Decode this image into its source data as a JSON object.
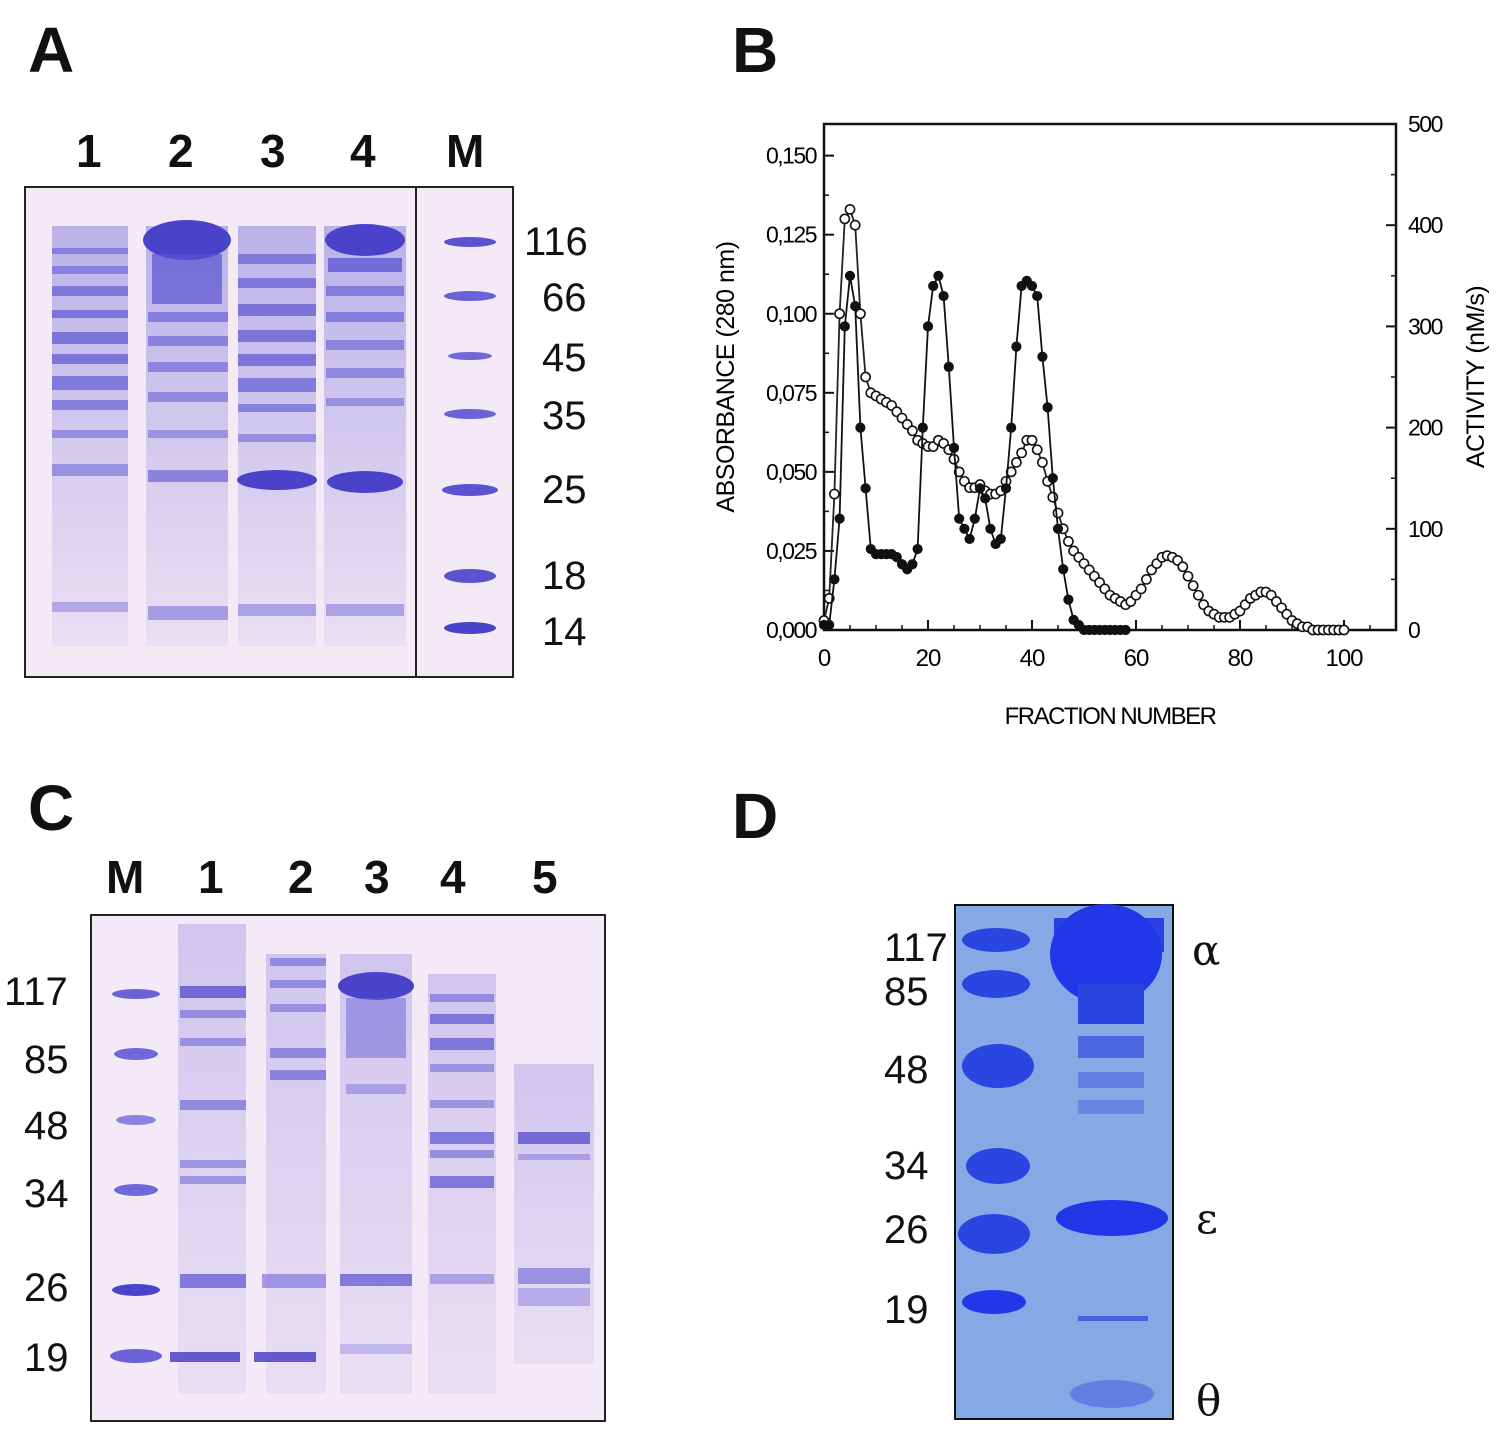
{
  "panels": {
    "A": {
      "letter": "A",
      "lanes": [
        "1",
        "2",
        "3",
        "4",
        "M"
      ],
      "markers": [
        "116",
        "66",
        "45",
        "35",
        "25",
        "18",
        "14"
      ]
    },
    "B": {
      "letter": "B"
    },
    "C": {
      "letter": "C",
      "lanes": [
        "M",
        "1",
        "2",
        "3",
        "4",
        "5"
      ],
      "markers": [
        "117",
        "85",
        "48",
        "34",
        "26",
        "19"
      ]
    },
    "D": {
      "letter": "D",
      "markers": [
        "117",
        "85",
        "48",
        "34",
        "26",
        "19"
      ],
      "subunits": [
        "α",
        "ε",
        "θ"
      ]
    }
  },
  "colors": {
    "gel_bg": "#f2e8f6",
    "band": "#6a62d6",
    "band_dark": "#4a42c8",
    "gel_d_bg": "#7fa4e2",
    "band_d": "#2038e8"
  },
  "chart_data": {
    "type": "line",
    "xlabel": "FRACTION NUMBER",
    "ylabel": "ABSORBANCE   (280 nm)",
    "y2label": "ACTIVITY   (nM/s)",
    "xlim": [
      0,
      110
    ],
    "ylim": [
      0,
      0.16
    ],
    "y2lim": [
      0,
      500
    ],
    "x_ticks": [
      "0",
      "20",
      "40",
      "60",
      "80",
      "100"
    ],
    "y_ticks": [
      "0,000",
      "0,025",
      "0,050",
      "0,075",
      "0,100",
      "0,125",
      "0,150"
    ],
    "y2_ticks": [
      "0",
      "100",
      "200",
      "300",
      "400",
      "500"
    ],
    "series": [
      {
        "name": "absorbance",
        "axis": "left",
        "marker": "open-circle",
        "x": [
          0,
          1,
          2,
          3,
          4,
          5,
          6,
          7,
          8,
          9,
          10,
          11,
          12,
          13,
          14,
          15,
          16,
          17,
          18,
          19,
          20,
          21,
          22,
          23,
          24,
          25,
          26,
          27,
          28,
          29,
          30,
          31,
          32,
          33,
          34,
          35,
          36,
          37,
          38,
          39,
          40,
          41,
          42,
          43,
          44,
          45,
          46,
          47,
          48,
          49,
          50,
          51,
          52,
          53,
          54,
          55,
          56,
          57,
          58,
          59,
          60,
          61,
          62,
          63,
          64,
          65,
          66,
          67,
          68,
          69,
          70,
          71,
          72,
          73,
          74,
          75,
          76,
          77,
          78,
          79,
          80,
          81,
          82,
          83,
          84,
          85,
          86,
          87,
          88,
          89,
          90,
          91,
          92,
          93,
          94,
          95,
          96,
          97,
          98,
          99,
          100
        ],
        "values": [
          0.003,
          0.01,
          0.043,
          0.1,
          0.13,
          0.133,
          0.128,
          0.1,
          0.08,
          0.075,
          0.074,
          0.073,
          0.072,
          0.071,
          0.069,
          0.067,
          0.065,
          0.063,
          0.06,
          0.059,
          0.058,
          0.058,
          0.06,
          0.059,
          0.057,
          0.054,
          0.05,
          0.047,
          0.045,
          0.045,
          0.046,
          0.044,
          0.043,
          0.043,
          0.044,
          0.047,
          0.05,
          0.053,
          0.056,
          0.06,
          0.06,
          0.057,
          0.053,
          0.047,
          0.042,
          0.037,
          0.032,
          0.028,
          0.025,
          0.023,
          0.021,
          0.019,
          0.017,
          0.015,
          0.013,
          0.011,
          0.01,
          0.009,
          0.008,
          0.009,
          0.011,
          0.013,
          0.016,
          0.019,
          0.021,
          0.023,
          0.0235,
          0.023,
          0.022,
          0.02,
          0.017,
          0.014,
          0.011,
          0.008,
          0.006,
          0.005,
          0.004,
          0.004,
          0.004,
          0.005,
          0.006,
          0.008,
          0.01,
          0.011,
          0.012,
          0.012,
          0.011,
          0.009,
          0.007,
          0.005,
          0.003,
          0.002,
          0.001,
          0.001,
          0.0,
          0.0,
          0.0,
          0.0,
          0.0,
          0.0,
          0.0
        ]
      },
      {
        "name": "activity",
        "axis": "right",
        "marker": "filled-circle",
        "x": [
          0,
          1,
          2,
          3,
          4,
          5,
          6,
          7,
          8,
          9,
          10,
          11,
          12,
          13,
          14,
          15,
          16,
          17,
          18,
          19,
          20,
          21,
          22,
          23,
          24,
          25,
          26,
          27,
          28,
          29,
          30,
          31,
          32,
          33,
          34,
          35,
          36,
          37,
          38,
          39,
          40,
          41,
          42,
          43,
          44,
          45,
          46,
          47,
          48,
          49,
          50,
          51,
          52,
          53,
          54,
          55,
          56,
          57,
          58
        ],
        "values": [
          5,
          5,
          50,
          110,
          300,
          350,
          320,
          200,
          140,
          80,
          75,
          75,
          75,
          75,
          72,
          65,
          60,
          65,
          80,
          200,
          300,
          340,
          350,
          330,
          260,
          180,
          110,
          100,
          90,
          110,
          140,
          130,
          100,
          85,
          90,
          140,
          200,
          280,
          340,
          345,
          340,
          330,
          270,
          220,
          150,
          100,
          60,
          30,
          10,
          5,
          0,
          0,
          0,
          0,
          0,
          0,
          0,
          0,
          0
        ]
      }
    ]
  }
}
